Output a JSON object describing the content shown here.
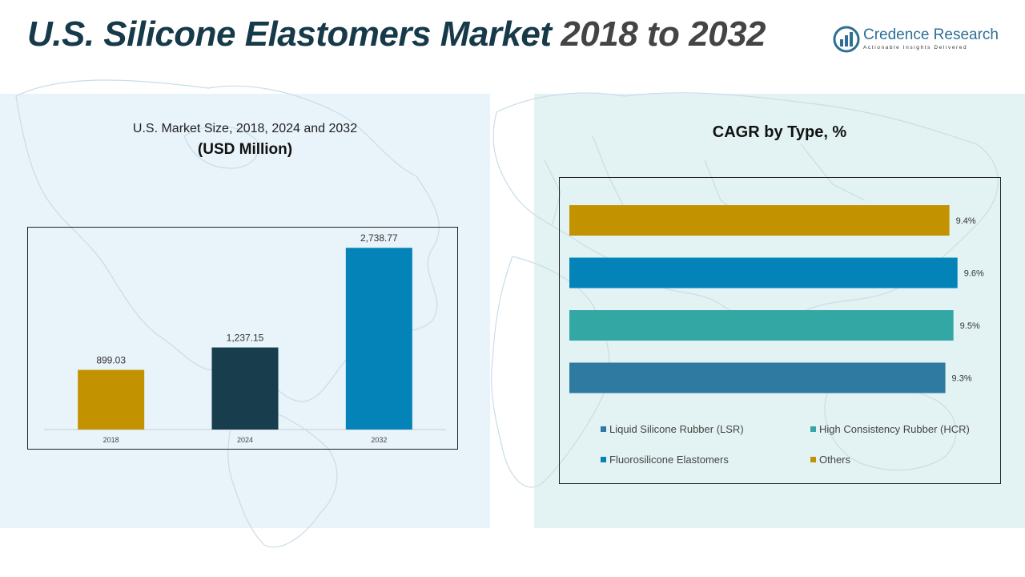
{
  "header": {
    "title_main": "U.S. Silicone Elastomers Market",
    "title_years": "2018 to 2032"
  },
  "logo": {
    "name": "Credence Research",
    "tagline": "Actionable Insights Delivered"
  },
  "left_panel": {
    "subtitle": "U.S. Market Size, 2018, 2024 and 2032",
    "unit": "(USD Million)"
  },
  "right_panel": {
    "title": "CAGR by Type, %"
  },
  "chart_data": [
    {
      "type": "bar",
      "title": "U.S. Market Size, 2018, 2024 and 2032",
      "ylabel": "(USD Million)",
      "categories": [
        "2018",
        "2024",
        "2032"
      ],
      "values": [
        899.03,
        1237.15,
        2738.77
      ],
      "labels": [
        "899.03",
        "1,237.15",
        "2,738.77"
      ],
      "colors": [
        "#c39200",
        "#183d4c",
        "#0383b7"
      ],
      "ylim": [
        0,
        3000
      ],
      "grid": false,
      "legend": "none"
    },
    {
      "type": "bar",
      "orientation": "horizontal",
      "title": "CAGR by Type, %",
      "categories": [
        "Others",
        "Fluorosilicone Elastomers",
        "High Consistency Rubber (HCR)",
        "Liquid Silicone Rubber (LSR)"
      ],
      "values": [
        9.4,
        9.6,
        9.5,
        9.3
      ],
      "labels": [
        "9.4%",
        "9.6%",
        "9.5%",
        "9.3%"
      ],
      "colors": [
        "#c39200",
        "#0383b7",
        "#33a7a3",
        "#2f7aa0"
      ],
      "xlim": [
        0,
        10.2
      ],
      "grid": false,
      "legend": "bottom",
      "legend_entries": [
        {
          "label": "Liquid Silicone Rubber (LSR)",
          "color": "#2f7aa0"
        },
        {
          "label": "High Consistency Rubber (HCR)",
          "color": "#33a7a3"
        },
        {
          "label": "Fluorosilicone Elastomers",
          "color": "#0383b7"
        },
        {
          "label": "Others",
          "color": "#c39200"
        }
      ]
    }
  ]
}
